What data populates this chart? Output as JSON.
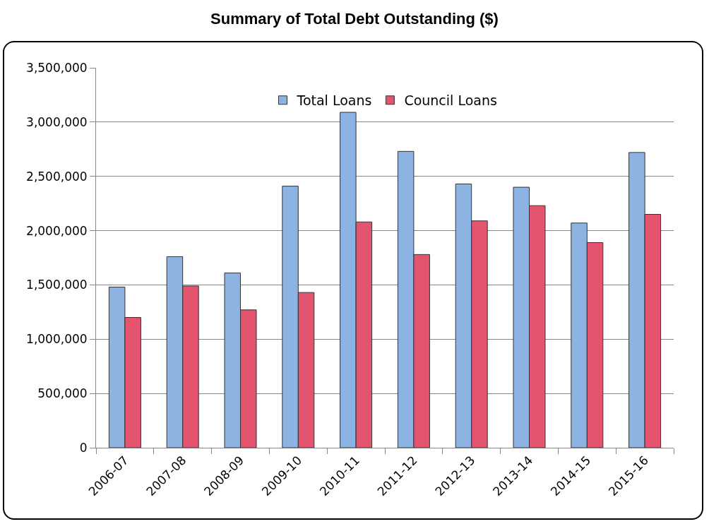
{
  "chart_data": {
    "type": "bar",
    "title": "Summary of Total Debt Outstanding ($)",
    "categories": [
      "2006-07",
      "2007-08",
      "2008-09",
      "2009-10",
      "2010-11",
      "2011-12",
      "2012-13",
      "2013-14",
      "2014-15",
      "2015-16"
    ],
    "series": [
      {
        "name": "Total Loans",
        "color": "#8db3e2",
        "values": [
          1480000,
          1760000,
          1610000,
          2410000,
          3090000,
          2730000,
          2430000,
          2400000,
          2070000,
          2720000
        ]
      },
      {
        "name": "Council Loans",
        "color": "#e5546f",
        "values": [
          1200000,
          1490000,
          1270000,
          1430000,
          2080000,
          1780000,
          2090000,
          2230000,
          1890000,
          2150000
        ]
      }
    ],
    "ylim": [
      0,
      3500000
    ],
    "yticks": [
      {
        "value": 0,
        "label": "0"
      },
      {
        "value": 500000,
        "label": "500,000"
      },
      {
        "value": 1000000,
        "label": "1,000,000"
      },
      {
        "value": 1500000,
        "label": "1,500,000"
      },
      {
        "value": 2000000,
        "label": "2,000,000"
      },
      {
        "value": 2500000,
        "label": "2,500,000"
      },
      {
        "value": 3000000,
        "label": "3,000,000"
      },
      {
        "value": 3500000,
        "label": "3,500,000"
      }
    ],
    "grid": "y",
    "legend": "top"
  }
}
